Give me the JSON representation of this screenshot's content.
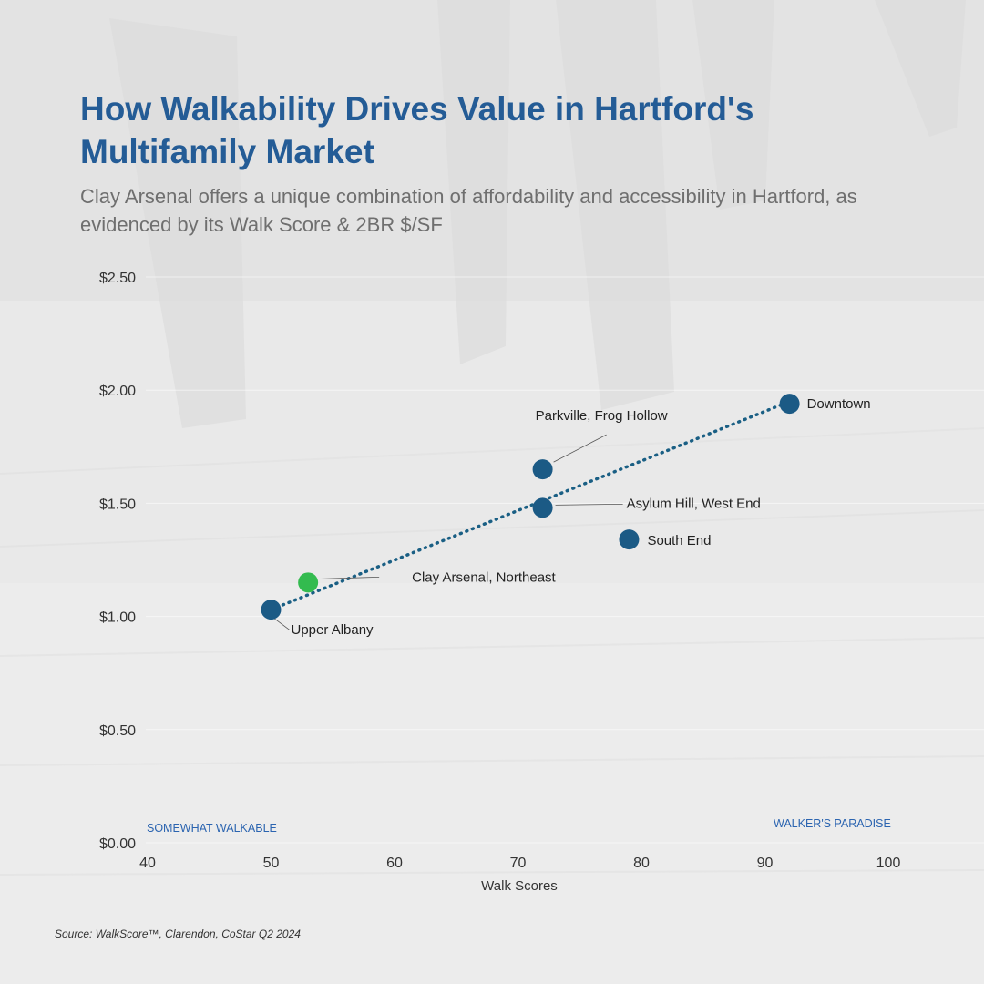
{
  "title": "How Walkability Drives Value in Hartford's Multifamily Market",
  "subtitle": "Clay Arsenal offers a unique combination of affordability and accessibility in Hartford, as evidenced by its Walk Score & 2BR $/SF",
  "source": "Source: WalkScore™, Clarendon, CoStar Q2 2024",
  "colors": {
    "title": "#245c96",
    "point": "#1b5a85",
    "highlight": "#33bb4f",
    "trendline": "#1a5f84",
    "zone_label": "#2b64b0"
  },
  "chart_data": {
    "type": "scatter",
    "title": "",
    "xlabel": "Walk Scores",
    "ylabel": "",
    "xlim": [
      40,
      100
    ],
    "ylim": [
      0,
      2.5
    ],
    "x_ticks": [
      40,
      50,
      60,
      70,
      80,
      90,
      100
    ],
    "y_ticks": [
      "$0.00",
      "$0.50",
      "$1.00",
      "$1.50",
      "$2.00",
      "$2.50"
    ],
    "y_tick_values": [
      0,
      0.5,
      1.0,
      1.5,
      2.0,
      2.5
    ],
    "grid": "horizontal",
    "points": [
      {
        "label": "Upper Albany",
        "x": 50,
        "y": 1.03,
        "highlight": false
      },
      {
        "label": "Clay Arsenal, Northeast",
        "x": 53,
        "y": 1.15,
        "highlight": true
      },
      {
        "label": "Parkville, Frog Hollow",
        "x": 72,
        "y": 1.65,
        "highlight": false
      },
      {
        "label": "Asylum Hill, West End",
        "x": 72,
        "y": 1.48,
        "highlight": false
      },
      {
        "label": "South End",
        "x": 79,
        "y": 1.34,
        "highlight": false
      },
      {
        "label": "Downtown",
        "x": 92,
        "y": 1.94,
        "highlight": false
      }
    ],
    "trendline": {
      "style": "dotted",
      "x": [
        50,
        92
      ],
      "y": [
        1.03,
        1.95
      ]
    },
    "zone_labels": [
      {
        "text": "SOMEWHAT WALKABLE"
      },
      {
        "text": "WALKER'S PARADISE"
      }
    ]
  }
}
